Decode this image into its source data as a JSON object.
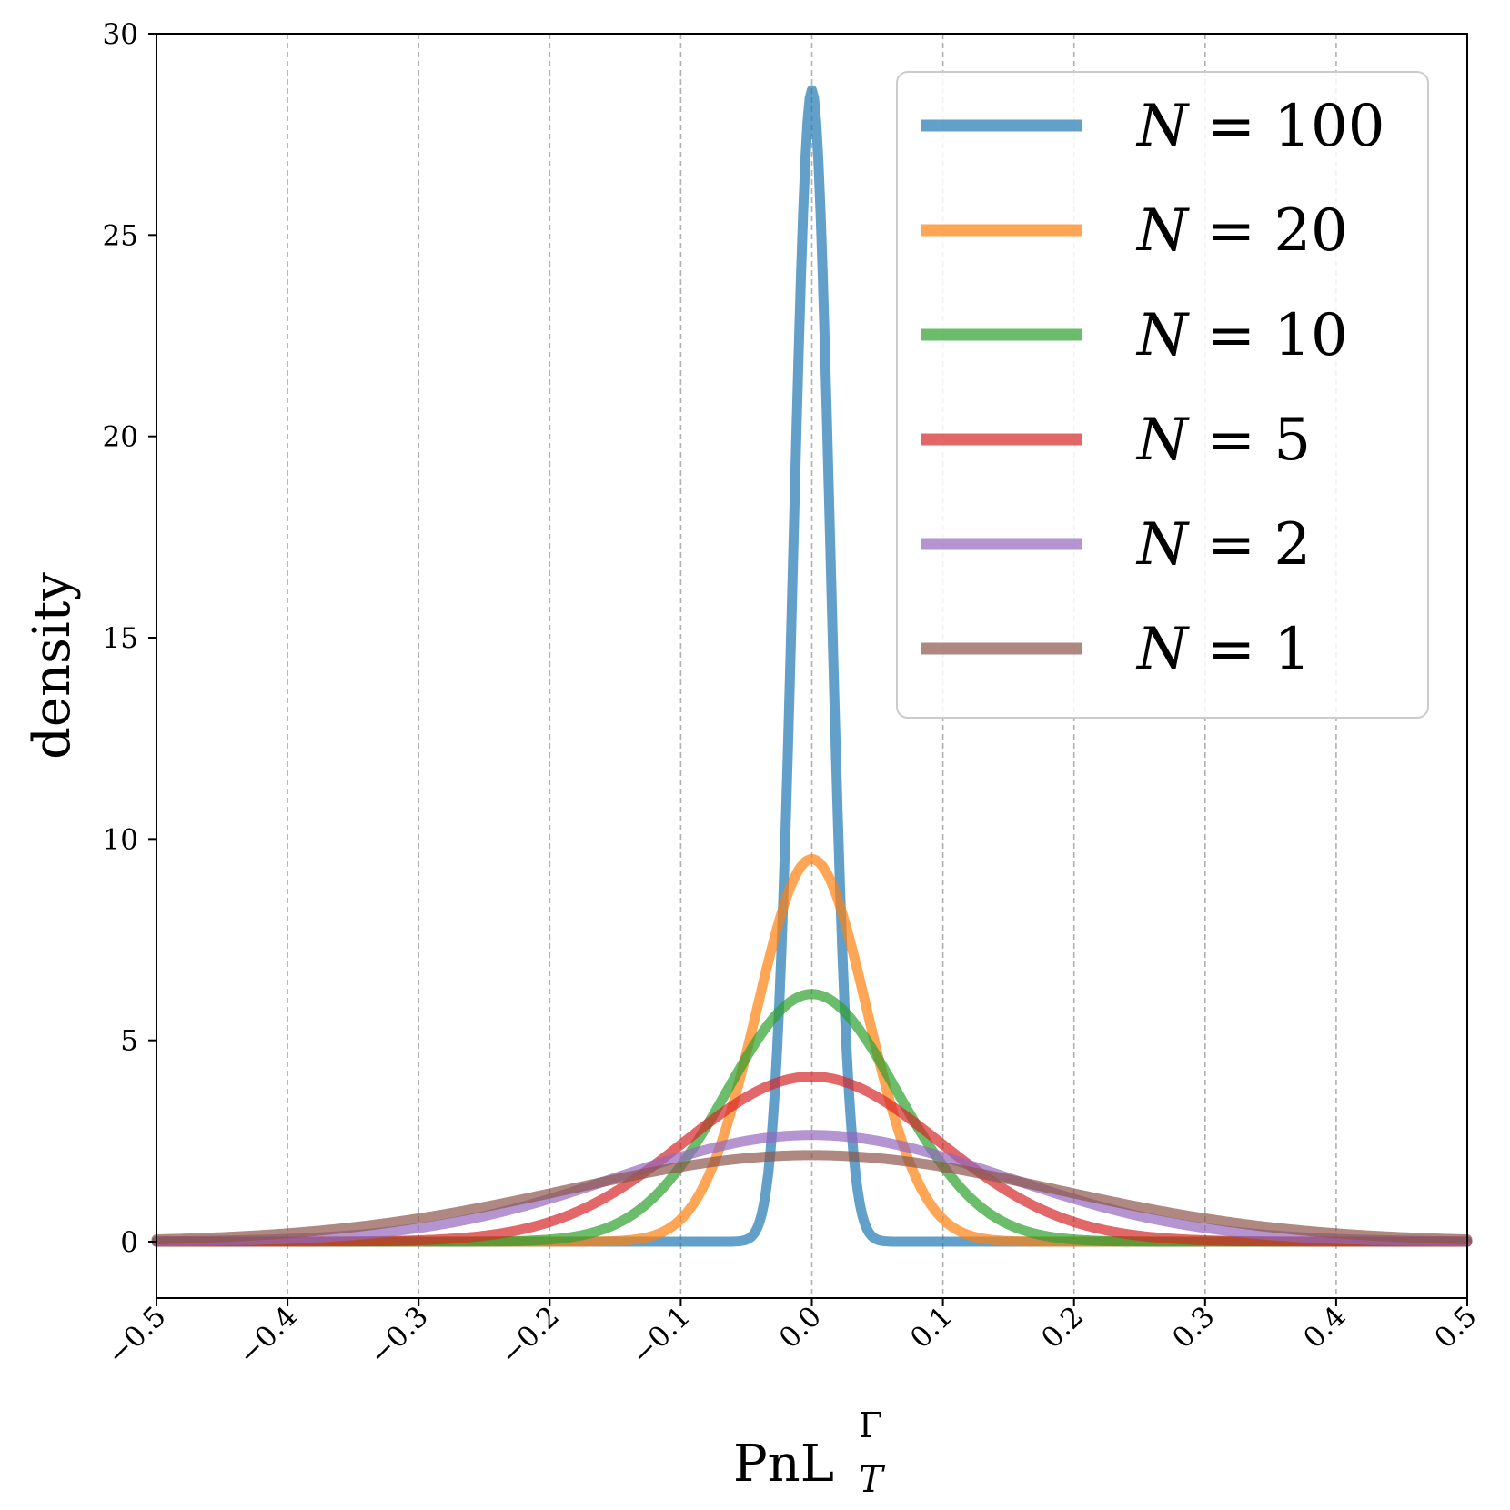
{
  "chart_data": {
    "type": "line",
    "title": "",
    "xlabel": "PnL",
    "xlabel_superscript": "Γ",
    "xlabel_subscript": "T",
    "ylabel": "density",
    "xlim": [
      -0.5,
      0.5
    ],
    "ylim": [
      -1.4,
      30
    ],
    "xticks": [
      -0.5,
      -0.4,
      -0.3,
      -0.2,
      -0.1,
      0.0,
      0.1,
      0.2,
      0.3,
      0.4,
      0.5
    ],
    "xtick_labels": [
      "−0.5",
      "−0.4",
      "−0.3",
      "−0.2",
      "−0.1",
      "0.0",
      "0.1",
      "0.2",
      "0.3",
      "0.4",
      "0.5"
    ],
    "yticks": [
      0,
      5,
      10,
      15,
      20,
      25,
      30
    ],
    "ytick_labels": [
      "0",
      "5",
      "10",
      "15",
      "20",
      "25",
      "30"
    ],
    "grid": "vertical dashed",
    "legend_position": "top-right",
    "series": [
      {
        "name": "N = 100",
        "name_var": "N",
        "name_val": "100",
        "color": "#1f77b4",
        "mean": 0.0,
        "std": 0.014,
        "peak": 28.6
      },
      {
        "name": "N = 20",
        "name_var": "N",
        "name_val": "20",
        "color": "#ff7f0e",
        "mean": 0.0,
        "std": 0.042,
        "peak": 9.5
      },
      {
        "name": "N = 10",
        "name_var": "N",
        "name_val": "10",
        "color": "#2ca02c",
        "mean": 0.0,
        "std": 0.065,
        "peak": 6.15
      },
      {
        "name": "N = 5",
        "name_var": "N",
        "name_val": "5",
        "color": "#d62728",
        "mean": 0.0,
        "std": 0.097,
        "peak": 4.1
      },
      {
        "name": "N = 2",
        "name_var": "N",
        "name_val": "2",
        "color": "#9467bd",
        "mean": 0.0,
        "std": 0.148,
        "peak": 2.65
      },
      {
        "name": "N = 1",
        "name_var": "N",
        "name_val": "1",
        "color": "#8c564b",
        "mean": 0.0,
        "std": 0.185,
        "peak": 2.15
      }
    ]
  }
}
